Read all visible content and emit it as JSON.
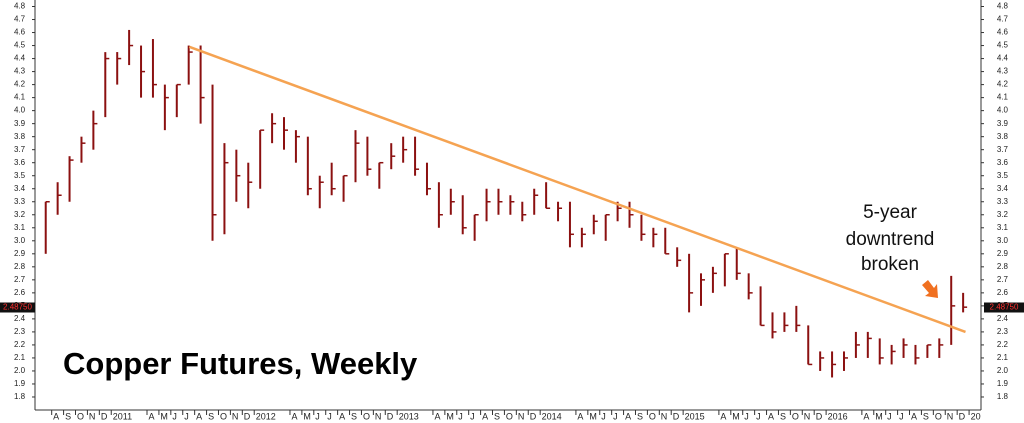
{
  "chart_data": {
    "type": "ohlc",
    "title": "Copper Futures, Weekly",
    "annotation": [
      "5-year",
      "downtrend",
      "broken"
    ],
    "color": "#8b1010",
    "trend_color": "#f5a352",
    "arrow_color": "#f07020",
    "series": [
      {
        "name": "Copper",
        "color": "#8b1010",
        "x": [
          0,
          1,
          2,
          3,
          4,
          5,
          6,
          7,
          8,
          9,
          10,
          11,
          12,
          13,
          14,
          15,
          16,
          17,
          18,
          19,
          20,
          21,
          22,
          23,
          24,
          25,
          26,
          27,
          28,
          29,
          30,
          31,
          32,
          33,
          34,
          35,
          36,
          37,
          38,
          39,
          40,
          41,
          42,
          43,
          44,
          45,
          46,
          47,
          48,
          49,
          50,
          51,
          52,
          53,
          54,
          55,
          56,
          57,
          58,
          59,
          60,
          61,
          62,
          63,
          64,
          65,
          66,
          67,
          68,
          69,
          70,
          71,
          72,
          73,
          74,
          75,
          76,
          77
        ],
        "high": [
          3.3,
          3.45,
          3.65,
          3.8,
          4.0,
          4.45,
          4.45,
          4.62,
          4.5,
          4.55,
          4.2,
          4.2,
          4.5,
          4.5,
          4.2,
          3.75,
          3.7,
          3.6,
          3.85,
          3.98,
          3.95,
          3.85,
          3.8,
          3.5,
          3.6,
          3.5,
          3.85,
          3.8,
          3.6,
          3.75,
          3.8,
          3.8,
          3.6,
          3.45,
          3.4,
          3.35,
          3.2,
          3.4,
          3.4,
          3.35,
          3.3,
          3.4,
          3.45,
          3.3,
          3.3,
          3.1,
          3.2,
          3.2,
          3.3,
          3.3,
          3.2,
          3.1,
          3.1,
          2.95,
          2.9,
          2.75,
          2.8,
          2.9,
          2.95,
          2.75,
          2.65,
          2.45,
          2.45,
          2.5,
          2.35,
          2.15,
          2.15,
          2.15,
          2.3,
          2.3,
          2.25,
          2.2,
          2.25,
          2.2,
          2.2,
          2.25,
          2.73,
          2.6
        ],
        "low": [
          2.9,
          3.2,
          3.3,
          3.6,
          3.7,
          3.95,
          4.2,
          4.35,
          4.1,
          4.1,
          3.85,
          3.95,
          4.2,
          3.9,
          3.0,
          3.05,
          3.3,
          3.25,
          3.4,
          3.75,
          3.7,
          3.6,
          3.35,
          3.25,
          3.35,
          3.3,
          3.45,
          3.5,
          3.4,
          3.55,
          3.6,
          3.5,
          3.35,
          3.1,
          3.2,
          3.05,
          3.0,
          3.15,
          3.2,
          3.2,
          3.15,
          3.2,
          3.25,
          3.15,
          2.95,
          2.95,
          3.05,
          3.0,
          3.15,
          3.1,
          3.0,
          2.95,
          2.9,
          2.8,
          2.45,
          2.5,
          2.6,
          2.65,
          2.7,
          2.55,
          2.35,
          2.25,
          2.3,
          2.3,
          2.05,
          2.0,
          1.95,
          2.0,
          2.1,
          2.1,
          2.05,
          2.05,
          2.1,
          2.05,
          2.1,
          2.1,
          2.2,
          2.45
        ],
        "close": [
          3.3,
          3.35,
          3.62,
          3.75,
          3.9,
          4.4,
          4.4,
          4.5,
          4.3,
          4.2,
          4.1,
          4.2,
          4.45,
          4.1,
          3.2,
          3.6,
          3.5,
          3.45,
          3.85,
          3.9,
          3.85,
          3.8,
          3.4,
          3.45,
          3.4,
          3.5,
          3.75,
          3.55,
          3.6,
          3.65,
          3.7,
          3.55,
          3.4,
          3.2,
          3.3,
          3.1,
          3.2,
          3.3,
          3.3,
          3.3,
          3.2,
          3.35,
          3.25,
          3.25,
          3.05,
          3.05,
          3.15,
          3.2,
          3.25,
          3.2,
          3.05,
          3.05,
          2.9,
          2.85,
          2.6,
          2.7,
          2.75,
          2.9,
          2.75,
          2.6,
          2.35,
          2.3,
          2.35,
          2.35,
          2.05,
          2.1,
          2.05,
          2.1,
          2.2,
          2.25,
          2.1,
          2.15,
          2.2,
          2.1,
          2.2,
          2.2,
          2.5,
          2.49
        ]
      }
    ],
    "last_price": {
      "value": 2.4875,
      "label": "2.48750"
    },
    "trendline": {
      "x": [
        12.55,
        77.7
      ],
      "y": [
        4.49,
        2.3
      ]
    },
    "xlim": [
      -0.4,
      79
    ],
    "ylim": [
      1.7,
      4.85
    ],
    "yticks": [
      1.8,
      1.9,
      {
        "value": 2,
        "label": "2.0"
      },
      2.1,
      2.2,
      2.3,
      2.4,
      2.5,
      2.6,
      2.7,
      2.8,
      2.9,
      {
        "value": 3,
        "label": "3.0"
      },
      3.1,
      3.2,
      3.3,
      3.4,
      3.5,
      3.6,
      3.7,
      3.8,
      3.9,
      {
        "value": 4,
        "label": "4.0"
      },
      4.1,
      4.2,
      4.3,
      4.4,
      4.5,
      4.6,
      4.7,
      4.8
    ],
    "xticks": [
      {
        "value": 1,
        "label": "A"
      },
      {
        "value": 2,
        "label": "S"
      },
      {
        "value": 3,
        "label": "O"
      },
      {
        "value": 4,
        "label": "N"
      },
      {
        "value": 5,
        "label": "D"
      },
      {
        "value": 6,
        "label": "2011"
      },
      {
        "value": 9,
        "label": "A"
      },
      {
        "value": 10,
        "label": "M"
      },
      {
        "value": 11,
        "label": "J"
      },
      {
        "value": 12,
        "label": "J"
      },
      {
        "value": 13,
        "label": "A"
      },
      {
        "value": 14,
        "label": "S"
      },
      {
        "value": 15,
        "label": "O"
      },
      {
        "value": 16,
        "label": "N"
      },
      {
        "value": 17,
        "label": "D"
      },
      {
        "value": 18,
        "label": "2012"
      },
      {
        "value": 21,
        "label": "A"
      },
      {
        "value": 22,
        "label": "M"
      },
      {
        "value": 23,
        "label": "J"
      },
      {
        "value": 24,
        "label": "J"
      },
      {
        "value": 25,
        "label": "A"
      },
      {
        "value": 26,
        "label": "S"
      },
      {
        "value": 27,
        "label": "O"
      },
      {
        "value": 28,
        "label": "N"
      },
      {
        "value": 29,
        "label": "D"
      },
      {
        "value": 30,
        "label": "2013"
      },
      {
        "value": 33,
        "label": "A"
      },
      {
        "value": 34,
        "label": "M"
      },
      {
        "value": 35,
        "label": "J"
      },
      {
        "value": 36,
        "label": "J"
      },
      {
        "value": 37,
        "label": "A"
      },
      {
        "value": 38,
        "label": "S"
      },
      {
        "value": 39,
        "label": "O"
      },
      {
        "value": 40,
        "label": "N"
      },
      {
        "value": 41,
        "label": "D"
      },
      {
        "value": 42,
        "label": "2014"
      },
      {
        "value": 45,
        "label": "A"
      },
      {
        "value": 46,
        "label": "M"
      },
      {
        "value": 47,
        "label": "J"
      },
      {
        "value": 48,
        "label": "J"
      },
      {
        "value": 49,
        "label": "A"
      },
      {
        "value": 50,
        "label": "S"
      },
      {
        "value": 51,
        "label": "O"
      },
      {
        "value": 52,
        "label": "N"
      },
      {
        "value": 53,
        "label": "D"
      },
      {
        "value": 54,
        "label": "2015"
      },
      {
        "value": 57,
        "label": "A"
      },
      {
        "value": 58,
        "label": "M"
      },
      {
        "value": 59,
        "label": "J"
      },
      {
        "value": 60,
        "label": "J"
      },
      {
        "value": 61,
        "label": "A"
      },
      {
        "value": 62,
        "label": "S"
      },
      {
        "value": 63,
        "label": "O"
      },
      {
        "value": 64,
        "label": "N"
      },
      {
        "value": 65,
        "label": "D"
      },
      {
        "value": 66,
        "label": "2016"
      },
      {
        "value": 69,
        "label": "A"
      },
      {
        "value": 70,
        "label": "M"
      },
      {
        "value": 71,
        "label": "J"
      },
      {
        "value": 72,
        "label": "J"
      },
      {
        "value": 73,
        "label": "A"
      },
      {
        "value": 74,
        "label": "S"
      },
      {
        "value": 75,
        "label": "O"
      },
      {
        "value": 76,
        "label": "N"
      },
      {
        "value": 77,
        "label": "D"
      },
      {
        "value": 78,
        "label": "20"
      }
    ]
  }
}
